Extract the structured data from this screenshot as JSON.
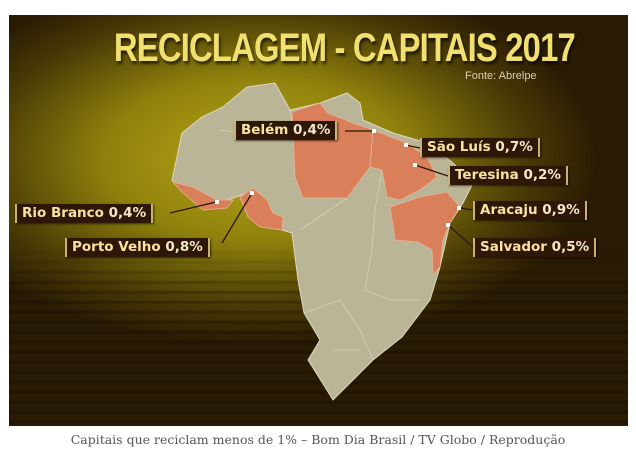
{
  "title": "RECICLAGEM - CAPITAIS 2017",
  "source": "Fonte: Abrelpe",
  "labels": [
    {
      "city": "Belém",
      "value": "0,4%"
    },
    {
      "city": "São Luís",
      "value": "0,7%"
    },
    {
      "city": "Teresina",
      "value": "0,2%"
    },
    {
      "city": "Rio Branco",
      "value": "0,4%"
    },
    {
      "city": "Aracaju",
      "value": "0,9%"
    },
    {
      "city": "Porto Velho",
      "value": "0,8%"
    },
    {
      "city": "Salvador",
      "value": "0,5%"
    }
  ],
  "caption": "Capitais que reciclam menos de 1% – Bom Dia Brasil / TV Globo / Reprodução",
  "colors": {
    "highlight": "#d9805a",
    "land": "#b9b596",
    "title": "#f1e070",
    "label_bg": "#2e1608"
  }
}
